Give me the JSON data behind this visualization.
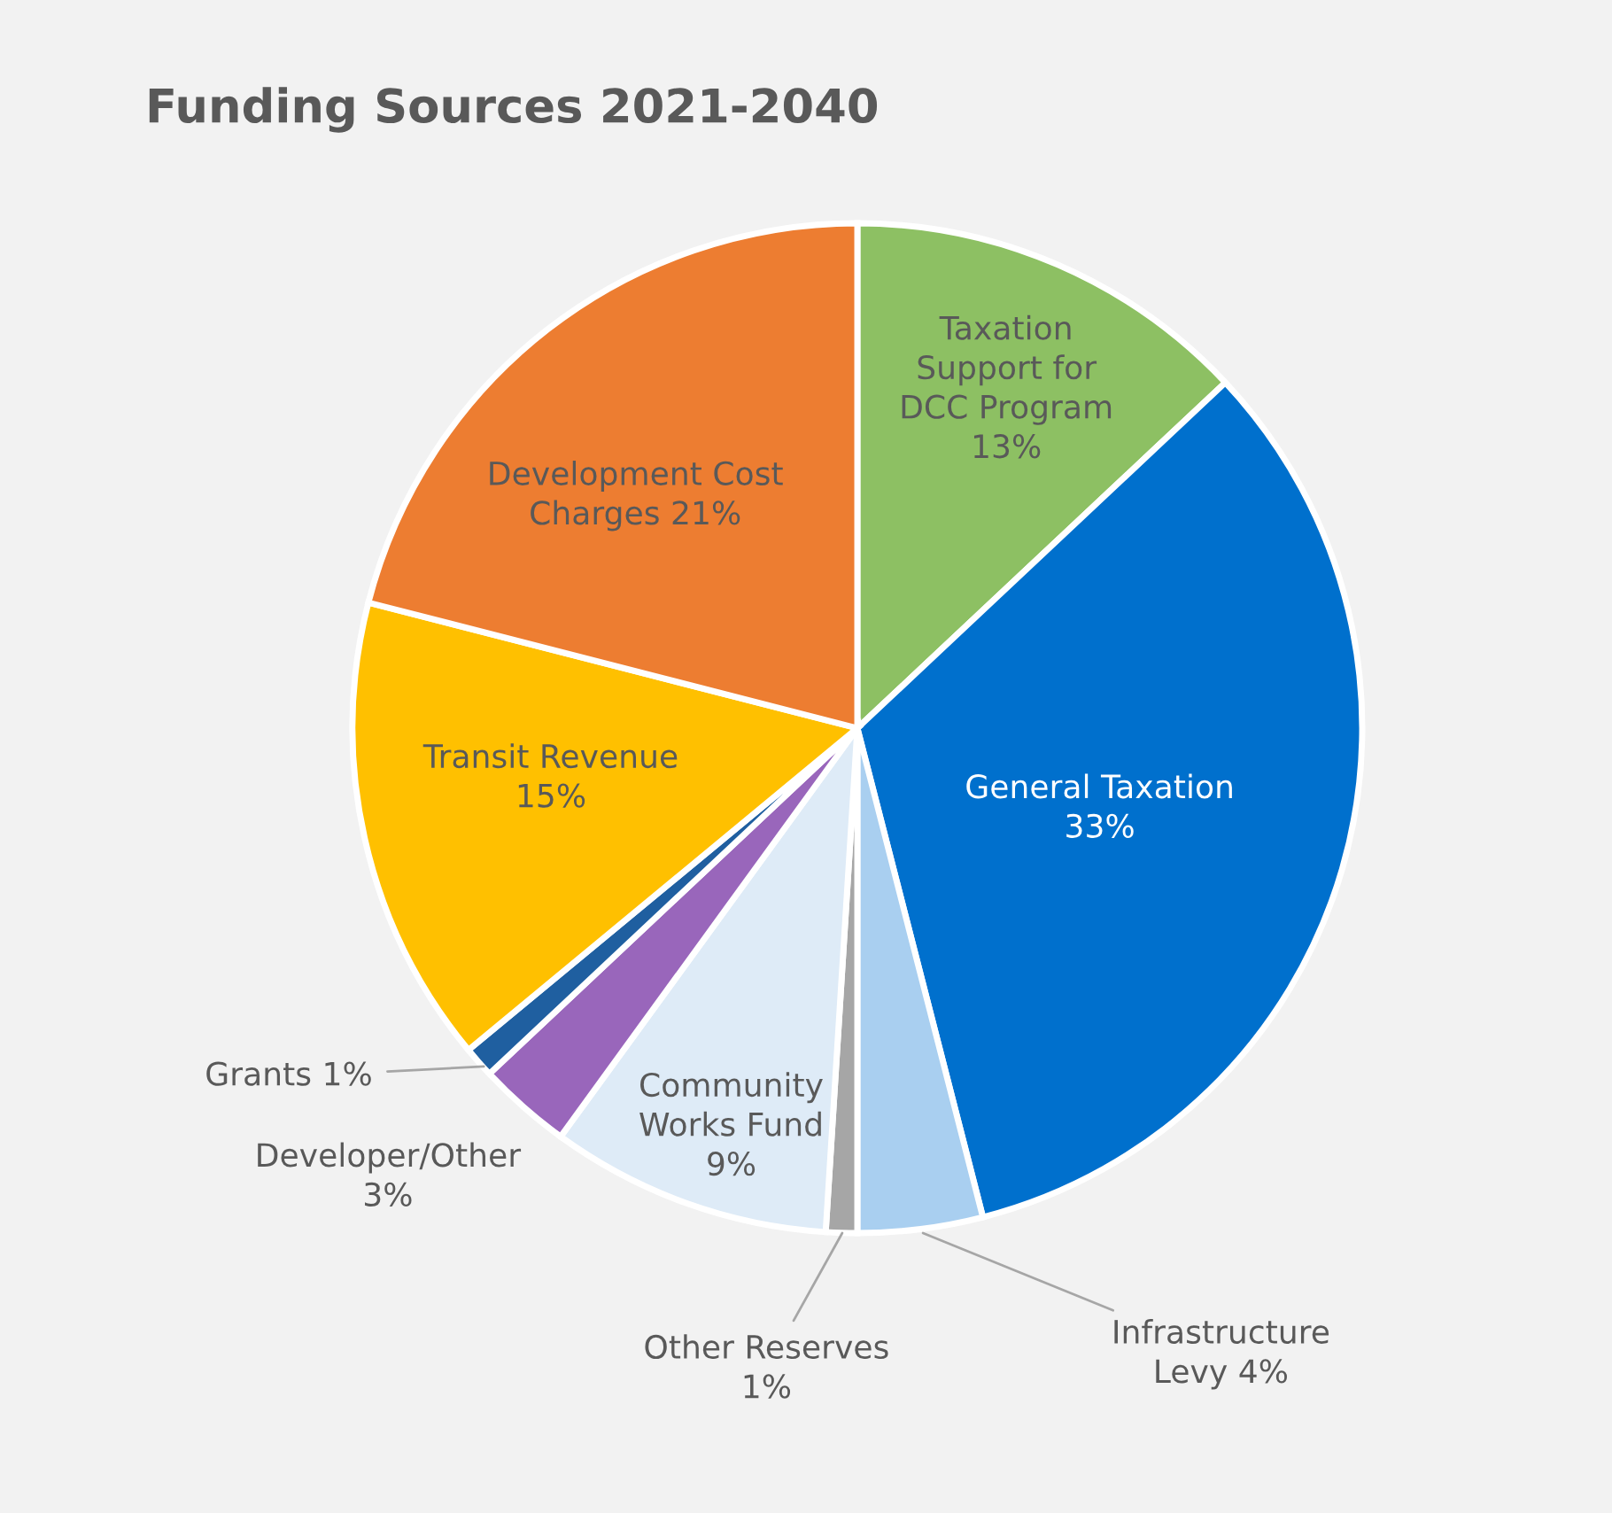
{
  "chart_data": {
    "type": "pie",
    "title": "Funding Sources 2021-2040",
    "categories": [
      "Taxation Support for DCC Program",
      "General Taxation",
      "Infrastructure Levy",
      "Other Reserves",
      "Community Works Fund",
      "Developer/Other",
      "Grants",
      "Transit Revenue",
      "Development Cost Charges"
    ],
    "values": [
      13,
      33,
      4,
      1,
      9,
      3,
      1,
      15,
      21
    ],
    "value_labels": [
      "13%",
      "33%",
      "4%",
      "1%",
      "9%",
      "3%",
      "1%",
      "15%",
      "21%"
    ],
    "colors": [
      "#8dc063",
      "#0070cd",
      "#a9cff0",
      "#a6a6a6",
      "#deebf7",
      "#9966bb",
      "#1f5fa0",
      "#ffc000",
      "#ed7d31"
    ]
  }
}
